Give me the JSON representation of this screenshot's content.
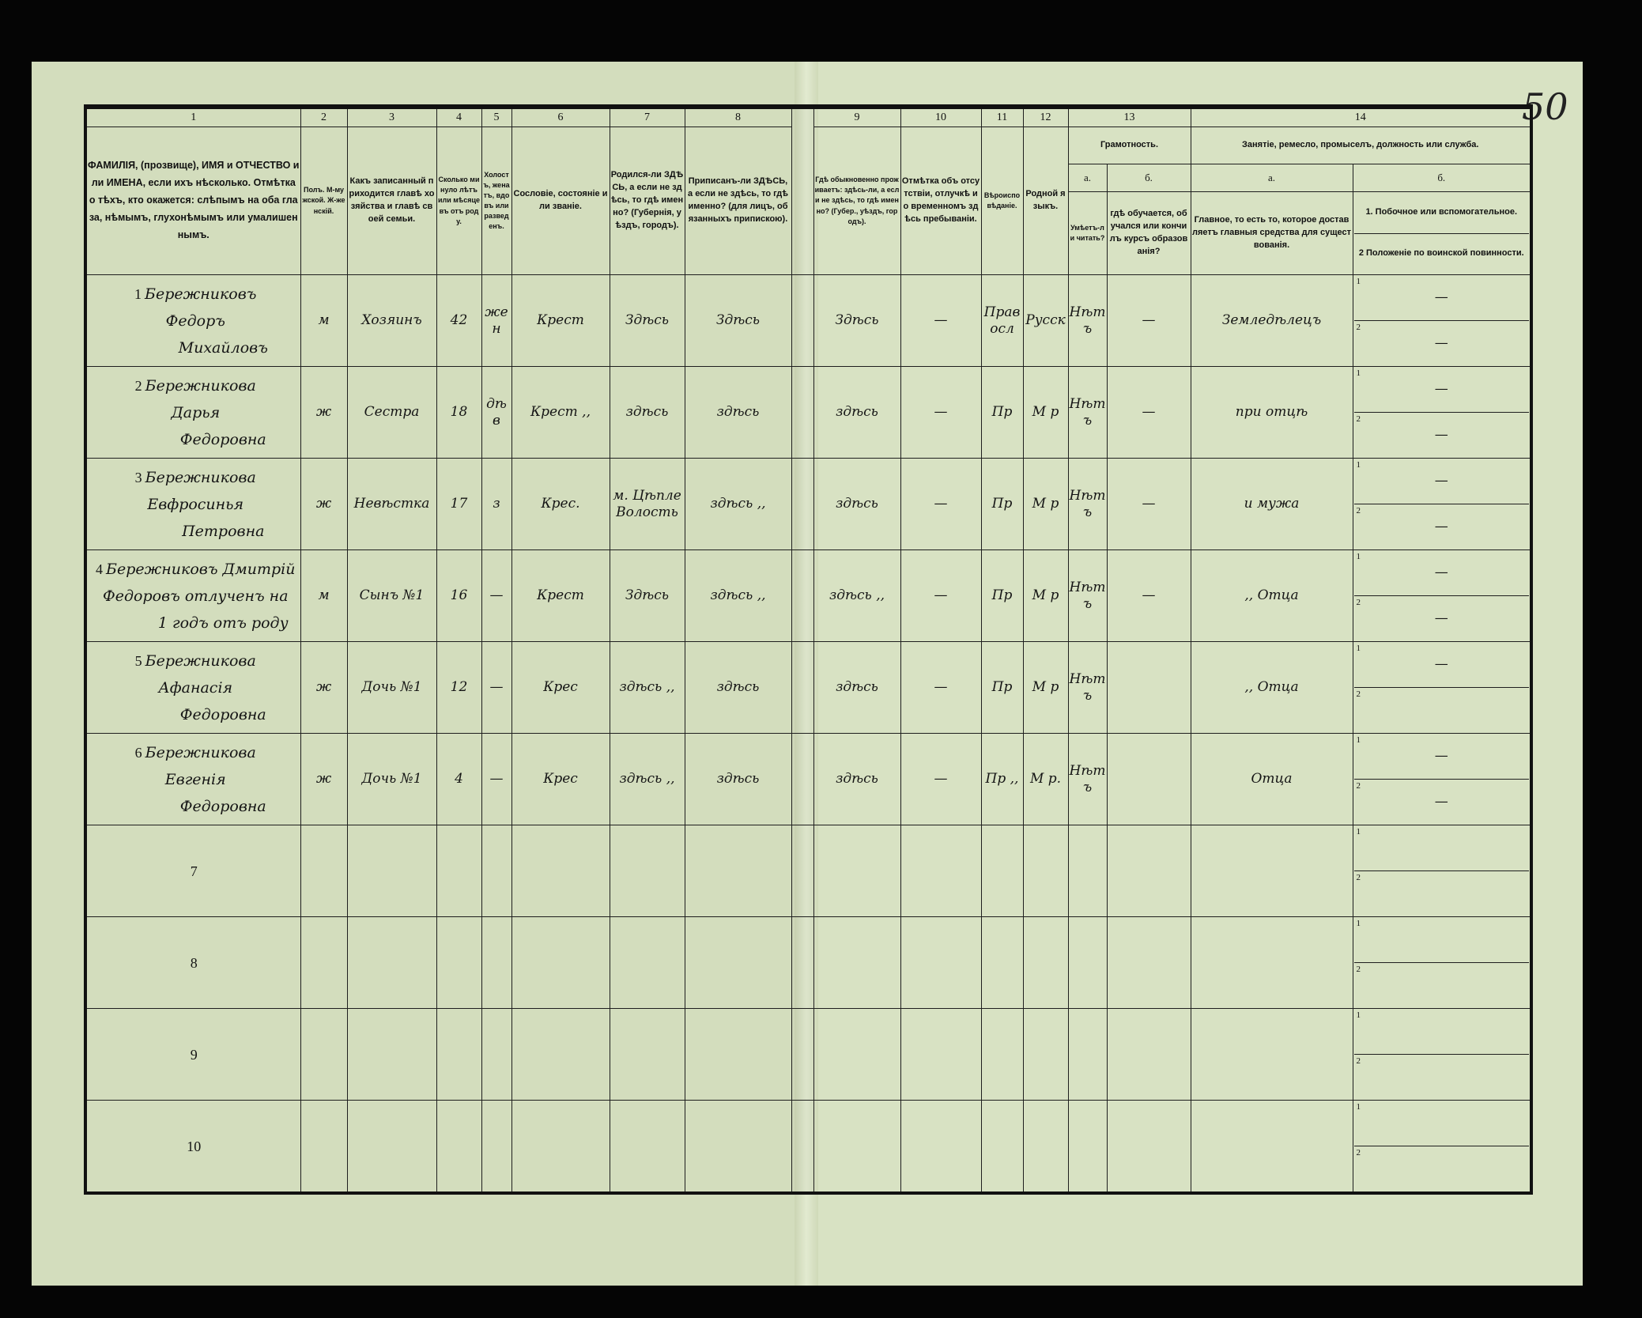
{
  "page_number": "50",
  "header": {
    "col_numbers": [
      "1",
      "2",
      "3",
      "4",
      "5",
      "6",
      "7",
      "8",
      "9",
      "10",
      "11",
      "12",
      "13",
      "14"
    ],
    "col1": "ФАМИЛІЯ, (прозвище), ИМЯ и ОТЧЕСТВО или ИМЕНА, если ихъ нѣсколько. Отмѣтка о тѣхъ, кто окажется: слѣпымъ на оба глаза, нѣмымъ, глухонѣмымъ или умалишеннымъ.",
    "col2": "Полъ. М-мужской. Ж-женскій.",
    "col3": "Какъ записанный приходится главѣ хозяйства и главѣ своей семьи.",
    "col4": "Сколько минуло лѣтъ или мѣсяцевъ отъ роду.",
    "col5": "Холостъ, женатъ, вдовъ или разведенъ.",
    "col6": "Сословіе, состояніе или званіе.",
    "col7": "Родился-ли ЗДѢСЬ, а если не здѣсь, то гдѣ именно? (Губернія, уѣздъ, городъ).",
    "col8": "Приписанъ-ли ЗДѢСЬ, а если не здѣсь, то гдѣ именно? (для лицъ, обязанныхъ припискою).",
    "col9": "Гдѣ обыкновенно проживаетъ: здѣсь-ли, а если не здѣсь, то гдѣ именно? (Губер., уѣздъ, городъ).",
    "col10": "Отмѣтка объ отсутствіи, отлучкѣ и о временномъ здѣсь пребываніи.",
    "col11": "Вѣроисповѣданіе.",
    "col12": "Родной языкъ.",
    "col13_title": "Грамотность.",
    "col13a_label": "а.",
    "col13b_label": "б.",
    "col13a": "Умѣетъ-ли читать?",
    "col13b": "гдѣ обучается, обучался или кончилъ курсъ образованія?",
    "col14_title": "Занятіе, ремесло, промыселъ, должность или служба.",
    "col14a_label": "а.",
    "col14b_label": "б.",
    "col14a": "Главное, то есть то, которое доставляетъ главныя средства для существованія.",
    "col14b_1": "1. Побочное или вспомогательное.",
    "col14b_2": "2 Положеніе по воинской повинности."
  },
  "sub_labels": [
    "1",
    "2"
  ],
  "rows": [
    {
      "no": "1",
      "name": [
        "Бережниковъ",
        "Федоръ",
        "Михайловъ"
      ],
      "sex": "м",
      "relation": "Хозяинъ",
      "age": "42",
      "marital": "жен",
      "estate": "Крест",
      "born": "Здѣсь",
      "registered": "Здѣсь",
      "resides": "Здѣсь",
      "absence": "—",
      "religion": "Правосл",
      "language": "Русск",
      "literate": "Нѣтъ",
      "schooling": "—",
      "occupation": "Земледѣлецъ",
      "side": "—",
      "military": "—"
    },
    {
      "no": "2",
      "name": [
        "Бережникова",
        "Дарья",
        "Федоровна"
      ],
      "sex": "ж",
      "relation": "Сестра",
      "age": "18",
      "marital": "дѣв",
      "estate": "Крест ,,",
      "born": "здѣсь",
      "registered": "здѣсь",
      "resides": "здѣсь",
      "absence": "—",
      "religion": "Пр",
      "language": "М р",
      "literate": "Нѣтъ",
      "schooling": "—",
      "occupation": "при отцѣ",
      "side": "—",
      "military": "—"
    },
    {
      "no": "3",
      "name": [
        "Бережникова",
        "Евфросинья",
        "Петровна"
      ],
      "sex": "ж",
      "relation": "Невѣстка",
      "age": "17",
      "marital": "з",
      "estate": "Крес.",
      "born": "м. Цѣпле Волость",
      "registered": "здѣсь ,,",
      "resides": "здѣсь",
      "absence": "—",
      "religion": "Пр",
      "language": "М р",
      "literate": "Нѣтъ",
      "schooling": "—",
      "occupation": "и мужа",
      "side": "—",
      "military": "—"
    },
    {
      "no": "4",
      "name": [
        "Бережниковъ Дмитрій",
        "Федоровъ отлученъ на",
        "1 годъ отъ роду"
      ],
      "sex": "м",
      "relation": "Сынъ №1",
      "age": "16",
      "marital": "—",
      "estate": "Крест",
      "born": "Здѣсь",
      "registered": "здѣсь ,,",
      "resides": "здѣсь ,,",
      "absence": "—",
      "religion": "Пр",
      "language": "М р",
      "literate": "Нѣтъ",
      "schooling": "—",
      "occupation": ",, Отца",
      "side": "—",
      "military": "—"
    },
    {
      "no": "5",
      "name": [
        "Бережникова",
        "Афанасія",
        "Федоровна"
      ],
      "sex": "ж",
      "relation": "Дочь №1",
      "age": "12",
      "marital": "—",
      "estate": "Крес",
      "born": "здѣсь ,,",
      "registered": "здѣсь",
      "resides": "здѣсь",
      "absence": "—",
      "religion": "Пр",
      "language": "М р",
      "literate": "Нѣтъ",
      "schooling": "",
      "occupation": ",, Отца",
      "side": "—",
      "military": ""
    },
    {
      "no": "6",
      "name": [
        "Бережникова",
        "Евгенія",
        "Федоровна"
      ],
      "sex": "ж",
      "relation": "Дочь №1",
      "age": "4",
      "marital": "—",
      "estate": "Крес",
      "born": "здѣсь ,,",
      "registered": "здѣсь",
      "resides": "здѣсь",
      "absence": "—",
      "religion": "Пр ,,",
      "language": "М р.",
      "literate": "Нѣтъ",
      "schooling": "",
      "occupation": "Отца",
      "side": "—",
      "military": "—"
    },
    {
      "no": "7",
      "name": [
        "",
        "",
        ""
      ],
      "sex": "",
      "relation": "",
      "age": "",
      "marital": "",
      "estate": "",
      "born": "",
      "registered": "",
      "resides": "",
      "absence": "",
      "religion": "",
      "language": "",
      "literate": "",
      "schooling": "",
      "occupation": "",
      "side": "",
      "military": ""
    },
    {
      "no": "8",
      "name": [
        "",
        "",
        ""
      ],
      "sex": "",
      "relation": "",
      "age": "",
      "marital": "",
      "estate": "",
      "born": "",
      "registered": "",
      "resides": "",
      "absence": "",
      "religion": "",
      "language": "",
      "literate": "",
      "schooling": "",
      "occupation": "",
      "side": "",
      "military": ""
    },
    {
      "no": "9",
      "name": [
        "",
        "",
        ""
      ],
      "sex": "",
      "relation": "",
      "age": "",
      "marital": "",
      "estate": "",
      "born": "",
      "registered": "",
      "resides": "",
      "absence": "",
      "religion": "",
      "language": "",
      "literate": "",
      "schooling": "",
      "occupation": "",
      "side": "",
      "military": ""
    },
    {
      "no": "10",
      "name": [
        "",
        "",
        ""
      ],
      "sex": "",
      "relation": "",
      "age": "",
      "marital": "",
      "estate": "",
      "born": "",
      "registered": "",
      "resides": "",
      "absence": "",
      "religion": "",
      "language": "",
      "literate": "",
      "schooling": "",
      "occupation": "",
      "side": "",
      "military": ""
    }
  ]
}
